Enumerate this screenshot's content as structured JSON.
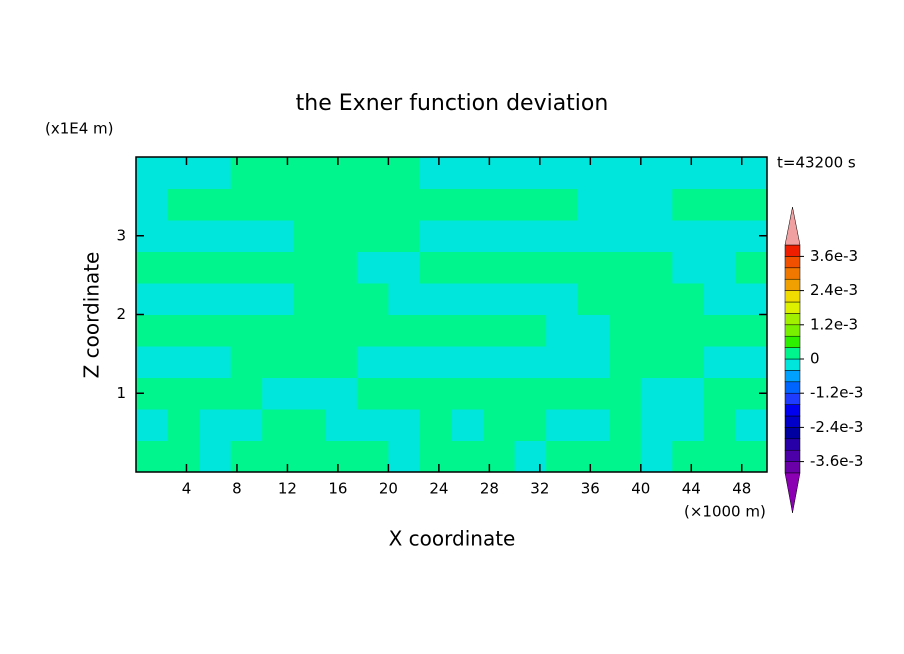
{
  "chart_data": {
    "type": "contour",
    "title": "the Exner function deviation",
    "xlabel": "X coordinate",
    "ylabel": "Z coordinate",
    "x_unit": "(×1000 m)",
    "y_unit": "(x1E4 m)",
    "time_label": "t=43200 s",
    "xlim": [
      0,
      50
    ],
    "ylim": [
      0,
      4
    ],
    "xticks": [
      4,
      8,
      12,
      16,
      20,
      24,
      28,
      32,
      36,
      40,
      44,
      48
    ],
    "yticks": [
      1,
      2,
      3
    ],
    "field": [
      [
        0.0002,
        0.0002,
        -0.0002,
        0.0002,
        0.0002,
        0.0002,
        0.0002,
        0.0002,
        -0.0002,
        0.0002,
        0.0002,
        0.0002,
        -0.0002,
        0.0002,
        0.0002,
        0.0002,
        -0.0002,
        0.0002,
        0.0002,
        0.0002
      ],
      [
        -0.0002,
        0.0002,
        -0.0002,
        -0.0002,
        0.0002,
        0.0002,
        -0.0002,
        -0.0002,
        -0.0002,
        0.0002,
        -0.0002,
        0.0002,
        0.0002,
        -0.0002,
        -0.0002,
        0.0002,
        -0.0002,
        -0.0002,
        0.0002,
        -0.0002
      ],
      [
        0.0002,
        0.0002,
        0.0002,
        0.0002,
        -0.0002,
        -0.0002,
        -0.0002,
        0.0002,
        0.0002,
        0.0002,
        0.0002,
        0.0002,
        0.0002,
        0.0002,
        0.0002,
        0.0002,
        -0.0002,
        -0.0002,
        0.0002,
        0.0002
      ],
      [
        -0.0002,
        -0.0002,
        -0.0002,
        0.0002,
        0.0002,
        0.0002,
        0.0002,
        -0.0002,
        -0.0002,
        -0.0002,
        -0.0002,
        -0.0002,
        -0.0002,
        -0.0002,
        -0.0002,
        0.0002,
        0.0002,
        0.0002,
        -0.0002,
        -0.0002
      ],
      [
        0.0002,
        0.0002,
        0.0002,
        0.0002,
        0.0002,
        0.0002,
        0.0002,
        0.0002,
        0.0002,
        0.0002,
        0.0002,
        0.0002,
        0.0002,
        -0.0002,
        -0.0002,
        0.0002,
        0.0002,
        0.0002,
        0.0002,
        0.0002
      ],
      [
        -0.0002,
        -0.0002,
        -0.0002,
        -0.0002,
        -0.0002,
        0.0002,
        0.0002,
        0.0002,
        -0.0002,
        -0.0002,
        -0.0002,
        -0.0002,
        -0.0002,
        -0.0002,
        0.0002,
        0.0002,
        0.0002,
        0.0002,
        -0.0002,
        -0.0002
      ],
      [
        0.0002,
        0.0002,
        0.0002,
        0.0002,
        0.0002,
        0.0002,
        0.0002,
        -0.0002,
        -0.0002,
        0.0002,
        0.0002,
        0.0002,
        0.0002,
        0.0002,
        0.0002,
        0.0002,
        0.0002,
        -0.0002,
        -0.0002,
        0.0002
      ],
      [
        -0.0002,
        -0.0002,
        -0.0002,
        -0.0002,
        -0.0002,
        0.0002,
        0.0002,
        0.0002,
        0.0002,
        -0.0002,
        -0.0002,
        -0.0002,
        -0.0002,
        -0.0002,
        -0.0002,
        -0.0002,
        -0.0002,
        -0.0002,
        -0.0002,
        -0.0002
      ],
      [
        -0.0002,
        0.0002,
        0.0002,
        0.0002,
        0.0002,
        0.0002,
        0.0002,
        0.0002,
        0.0002,
        0.0002,
        0.0002,
        0.0002,
        0.0002,
        0.0002,
        -0.0002,
        -0.0002,
        -0.0002,
        0.0002,
        0.0002,
        0.0002
      ],
      [
        -0.0002,
        -0.0002,
        -0.0002,
        0.0002,
        0.0002,
        0.0002,
        0.0002,
        0.0002,
        0.0002,
        -0.0002,
        -0.0002,
        -0.0002,
        -0.0002,
        -0.0002,
        -0.0002,
        -0.0002,
        -0.0002,
        -0.0002,
        -0.0002,
        -0.0002
      ]
    ],
    "levels": [
      -0.004,
      -0.0036,
      -0.0032,
      -0.0028,
      -0.0024,
      -0.002,
      -0.0016,
      -0.0012,
      -0.0008,
      -0.0004,
      0,
      0.0004,
      0.0008,
      0.0012,
      0.0016,
      0.002,
      0.0024,
      0.0028,
      0.0032,
      0.0036,
      0.004
    ],
    "colors": [
      "#6a00a8",
      "#4b00a8",
      "#2800a8",
      "#0000a0",
      "#0000c8",
      "#0000f0",
      "#1e3cff",
      "#0064ff",
      "#00a0ff",
      "#00e6dc",
      "#00f68c",
      "#2cf000",
      "#78f000",
      "#a0f000",
      "#dcf000",
      "#f0dc00",
      "#f0a000",
      "#f07800",
      "#f05000",
      "#f01e00"
    ],
    "over_color": "#f0a0a0",
    "under_color": "#8c00b4",
    "cbar_ticks": [
      {
        "value": -0.0036,
        "label": "-3.6e-3"
      },
      {
        "value": -0.0024,
        "label": "-2.4e-3"
      },
      {
        "value": -0.0012,
        "label": "-1.2e-3"
      },
      0,
      {
        "value": 0.0012,
        "label": "1.2e-3"
      },
      {
        "value": 0.0024,
        "label": "2.4e-3"
      },
      {
        "value": 0.0036,
        "label": "3.6e-3"
      }
    ]
  }
}
